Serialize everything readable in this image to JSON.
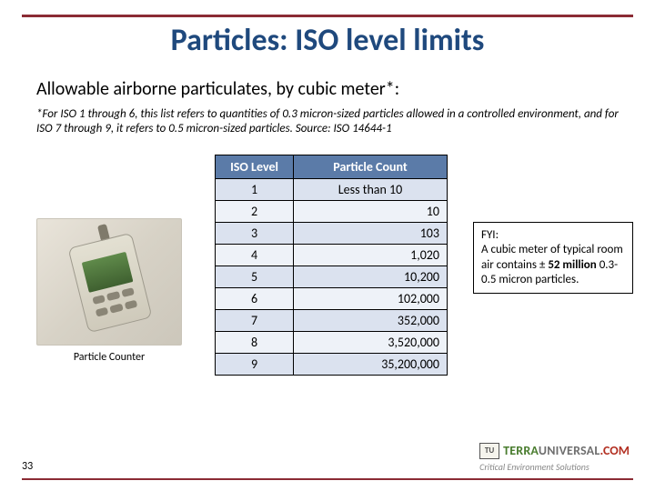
{
  "title": {
    "text": "Particles: ISO level limits",
    "fontsize": 34
  },
  "subtitle": {
    "text": "Allowable airborne particulates, by cubic meter*:",
    "fontsize": 20
  },
  "footnote": {
    "text": "*For ISO 1 through 6, this list refers to quantities of 0.3 micron-sized particles allowed in a controlled environment, and for ISO 7 through 9, it refers to 0.5 micron-sized particles. Source: ISO 14644-1",
    "fontsize": 13
  },
  "device_caption": {
    "text": "Particle Counter",
    "fontsize": 12
  },
  "table": {
    "header_bg": "#5b7ba8",
    "header_color": "#ffffff",
    "row_bg_odd": "#dbe2ef",
    "row_bg_even": "#eef2f8",
    "border_color": "#000000",
    "fontsize": 14,
    "columns": [
      "ISO Level",
      "Particle Count"
    ],
    "rows": [
      {
        "level": "1",
        "count": "Less than 10",
        "is_text": true
      },
      {
        "level": "2",
        "count": "10"
      },
      {
        "level": "3",
        "count": "103"
      },
      {
        "level": "4",
        "count": "1,020"
      },
      {
        "level": "5",
        "count": "10,200"
      },
      {
        "level": "6",
        "count": "102,000"
      },
      {
        "level": "7",
        "count": "352,000"
      },
      {
        "level": "8",
        "count": "3,520,000"
      },
      {
        "level": "9",
        "count": "35,200,000"
      }
    ]
  },
  "fyi": {
    "lead": "FYI:",
    "body_pre": "A cubic meter of typical room air contains ± ",
    "body_strong": "52 million",
    "body_post": " 0.3-0.5 micron particles.",
    "fontsize": 13
  },
  "page_number": "33",
  "logo": {
    "mark": "TU",
    "terra": "TERRA",
    "universal": "UNIVERSAL",
    "com": ".COM",
    "tagline": "Critical Environment Solutions",
    "terra_color": "#4a7d2f",
    "com_color": "#b33022",
    "name_fontsize": 14,
    "tag_fontsize": 10
  },
  "colors": {
    "rule": "#8b2b34",
    "title": "#1f497d",
    "background": "#ffffff"
  }
}
